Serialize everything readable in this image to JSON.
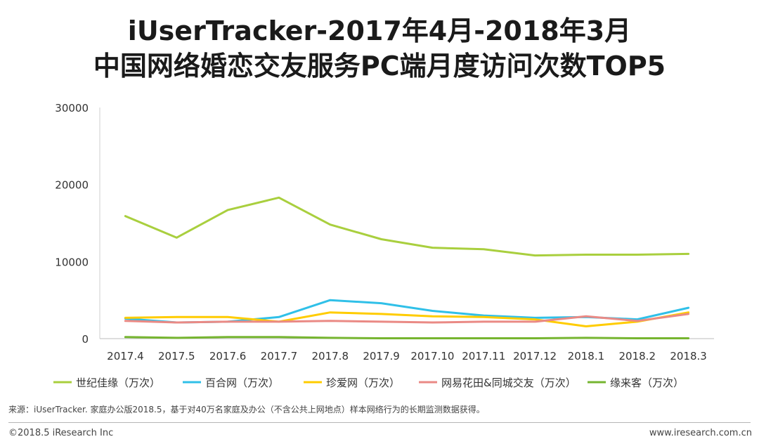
{
  "chart_data": {
    "type": "line",
    "title_line1": "iUserTracker-2017年4月-2018年3月",
    "title_line2": "中国网络婚恋交友服务PC端月度访问次数TOP5",
    "categories": [
      "2017.4",
      "2017.5",
      "2017.6",
      "2017.7",
      "2017.8",
      "2017.9",
      "2017.10",
      "2017.11",
      "2017.12",
      "2018.1",
      "2018.2",
      "2018.3"
    ],
    "ylim": [
      0,
      30000
    ],
    "yticks": [
      "0",
      "10000",
      "20000",
      "30000"
    ],
    "ytick_values": [
      0,
      10000,
      20000,
      30000
    ],
    "legend_position": "bottom",
    "series": [
      {
        "name": "世纪佳缘（万次）",
        "color": "#a9cf3e",
        "values": [
          15900,
          13100,
          16700,
          18300,
          14800,
          12900,
          11800,
          11600,
          10800,
          10900,
          10900,
          11000
        ]
      },
      {
        "name": "百合网（万次）",
        "color": "#30c0e8",
        "values": [
          2600,
          2100,
          2200,
          2800,
          5000,
          4600,
          3600,
          3000,
          2700,
          2800,
          2500,
          4000
        ]
      },
      {
        "name": "珍爱网（万次）",
        "color": "#ffcc00",
        "values": [
          2700,
          2800,
          2800,
          2200,
          3400,
          3200,
          2900,
          2800,
          2500,
          1600,
          2200,
          3400
        ]
      },
      {
        "name": "网易花田&同城交友（万次）",
        "color": "#ea8a85",
        "values": [
          2300,
          2100,
          2200,
          2200,
          2300,
          2200,
          2100,
          2200,
          2200,
          2900,
          2300,
          3200
        ]
      },
      {
        "name": "缘来客（万次）",
        "color": "#76b530",
        "values": [
          200,
          100,
          200,
          200,
          100,
          50,
          50,
          50,
          50,
          100,
          50,
          50
        ]
      }
    ]
  },
  "footer": {
    "source": "来源：iUserTracker. 家庭办公版2018.5，基于对40万名家庭及办公（不含公共上网地点）样本网络行为的长期监测数据获得。",
    "copyright": "©2018.5 iResearch Inc",
    "website": "www.iresearch.com.cn"
  }
}
